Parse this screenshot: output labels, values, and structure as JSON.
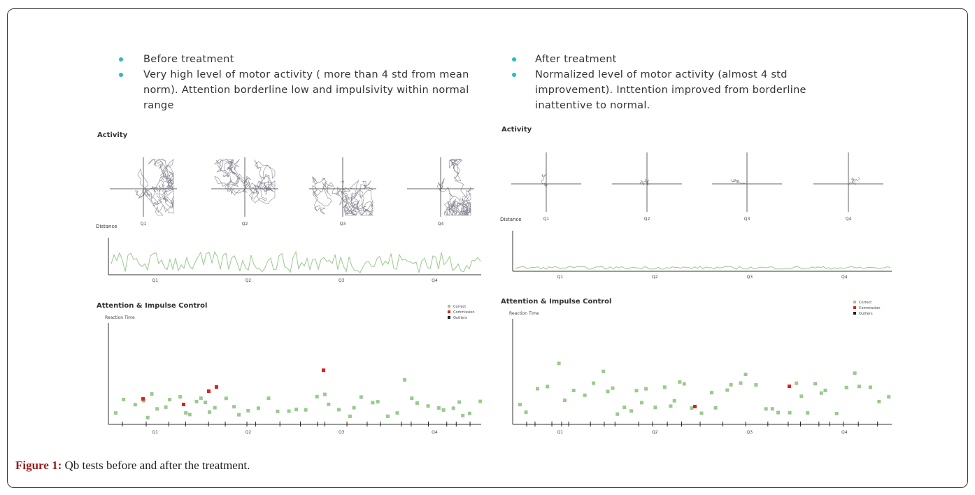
{
  "figure": {
    "left": {
      "bullets": [
        "Before treatment",
        "Very high level of motor activity ( more than 4 std from mean norm). Attention borderline low and impulsivity within normal range"
      ],
      "activity_label": "Activity",
      "distance_label": "Distance",
      "attention_label": "Attention & Impulse Control",
      "reaction_label": "Reaction Time",
      "legend": [
        "Correct",
        "Commission",
        "Outliers"
      ],
      "quarters": [
        "Q1",
        "Q2",
        "Q3",
        "Q4"
      ]
    },
    "right": {
      "bullets": [
        "After treatment",
        "Normalized level of motor activity (almost 4 std improvement). Inttention improved from borderline inattentive to normal."
      ],
      "activity_label": "Activity",
      "distance_label": "Distance",
      "attention_label": "Attention & Impulse Control",
      "reaction_label": "Reaction Time",
      "legend": [
        "Correct",
        "Commission",
        "Outliers"
      ],
      "quarters": [
        "Q1",
        "Q2",
        "Q3",
        "Q4"
      ]
    }
  },
  "caption": {
    "label": "Figure 1:",
    "text": "Qb tests before and after the treatment."
  }
}
